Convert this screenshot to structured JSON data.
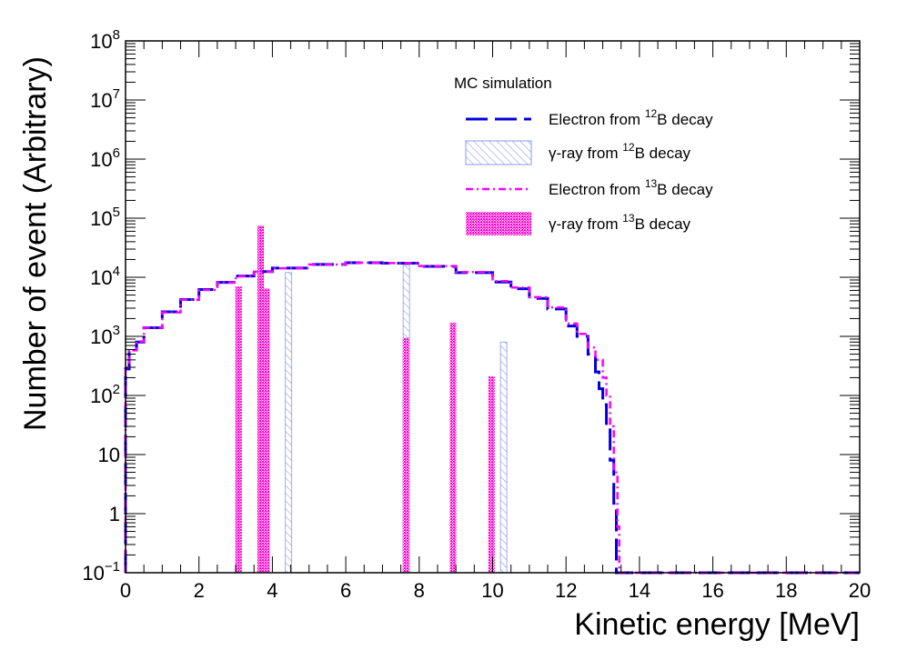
{
  "chart_data": {
    "type": "step-histogram",
    "title": "",
    "xlabel": "Kinetic energy [MeV]",
    "ylabel": "Number of event (Arbitrary)",
    "xlim": [
      0,
      20
    ],
    "ylim": [
      0.1,
      100000000
    ],
    "yscale": "log",
    "x_ticks": [
      "0",
      "2",
      "4",
      "6",
      "8",
      "10",
      "12",
      "14",
      "16",
      "18",
      "20"
    ],
    "y_tick_labels": [
      {
        "base": "10",
        "exp": "−1",
        "value": 0.1
      },
      {
        "base": "1",
        "exp": "",
        "value": 1
      },
      {
        "base": "10",
        "exp": "",
        "value": 10
      },
      {
        "base": "10",
        "exp": "2",
        "value": 100
      },
      {
        "base": "10",
        "exp": "3",
        "value": 1000
      },
      {
        "base": "10",
        "exp": "4",
        "value": 10000
      },
      {
        "base": "10",
        "exp": "5",
        "value": 100000
      },
      {
        "base": "10",
        "exp": "6",
        "value": 1000000
      },
      {
        "base": "10",
        "exp": "7",
        "value": 10000000
      },
      {
        "base": "10",
        "exp": "8",
        "value": 100000000
      }
    ],
    "legend": {
      "title": "MC simulation",
      "position": "top-right",
      "entries": [
        {
          "pre": "Electron from ",
          "sup": "12",
          "post": "B decay"
        },
        {
          "pre": "γ-ray from ",
          "sup": "12",
          "post": "B decay"
        },
        {
          "pre": "Electron from ",
          "sup": "13",
          "post": "B decay"
        },
        {
          "pre": "γ-ray from ",
          "sup": "13",
          "post": "B decay"
        }
      ]
    },
    "series": [
      {
        "name": "Electron from 12B decay",
        "kind": "electron",
        "color": "#0000dd",
        "style": "long-dash",
        "x": [
          0.0,
          0.1,
          0.3,
          0.5,
          1.0,
          1.5,
          2.0,
          2.5,
          3.0,
          3.5,
          4.0,
          5.0,
          6.0,
          7.0,
          8.0,
          9.0,
          10.0,
          10.5,
          11.0,
          11.5,
          12.0,
          12.3,
          12.6,
          12.8,
          12.9,
          13.0,
          13.1,
          13.2,
          13.3,
          13.37
        ],
        "values": [
          280,
          550,
          800,
          1400,
          2600,
          4200,
          6200,
          8200,
          10500,
          12500,
          14300,
          16500,
          17600,
          17300,
          15300,
          12000,
          8300,
          6400,
          4400,
          2900,
          1500,
          1000,
          500,
          250,
          130,
          70,
          30,
          8,
          1.5,
          0.1
        ]
      },
      {
        "name": "Electron from 13B decay",
        "kind": "electron",
        "color": "#ff00ff",
        "style": "dash-dot",
        "x": [
          0.0,
          0.1,
          0.3,
          0.5,
          1.0,
          1.5,
          2.0,
          2.5,
          3.0,
          3.5,
          4.0,
          5.0,
          6.0,
          7.0,
          8.0,
          9.0,
          10.0,
          10.5,
          11.0,
          11.5,
          12.0,
          12.3,
          12.6,
          12.8,
          13.0,
          13.1,
          13.2,
          13.3,
          13.4,
          13.45
        ],
        "values": [
          300,
          580,
          820,
          1400,
          2550,
          4150,
          6100,
          8100,
          10400,
          12400,
          14200,
          16400,
          17600,
          17400,
          15500,
          12300,
          8600,
          6700,
          4600,
          3100,
          1650,
          1100,
          650,
          400,
          200,
          100,
          30,
          5,
          0.6,
          0.1
        ]
      }
    ],
    "gamma_lines": [
      {
        "name": "γ-ray from 12B decay",
        "pattern": "hatch",
        "color": "#8899ee",
        "peaks": [
          {
            "x": 4.44,
            "value": 12000
          },
          {
            "x": 7.65,
            "value": 16000
          },
          {
            "x": 10.3,
            "value": 800
          }
        ]
      },
      {
        "name": "γ-ray from 13B decay",
        "pattern": "dots",
        "color": "#ff00cc",
        "peaks": [
          {
            "x": 3.08,
            "value": 7000
          },
          {
            "x": 3.68,
            "value": 75000
          },
          {
            "x": 3.84,
            "value": 6500
          },
          {
            "x": 7.64,
            "value": 950
          },
          {
            "x": 8.92,
            "value": 1700
          },
          {
            "x": 9.97,
            "value": 210
          }
        ]
      }
    ]
  }
}
